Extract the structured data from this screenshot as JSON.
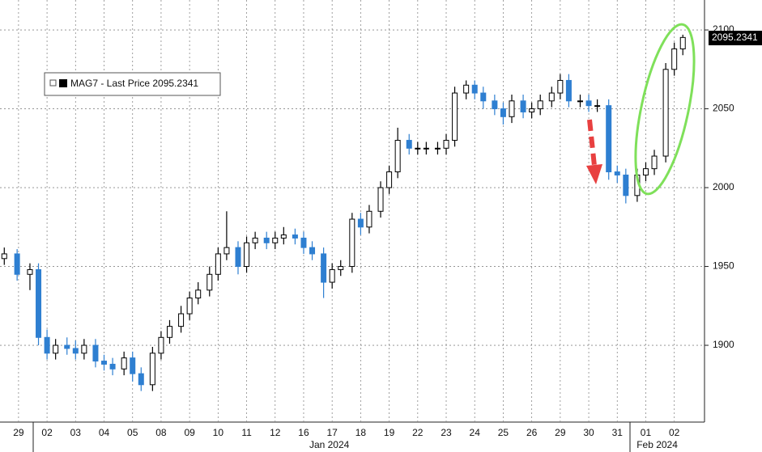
{
  "chart_data": {
    "type": "candlestick",
    "legend": "MAG7 - Last Price 2095.2341",
    "up_color": "#ffffff",
    "down_color": "#2e7fd1",
    "grid": true,
    "x": [
      -0.5,
      -0.05,
      0.4,
      0.7,
      1,
      1.3,
      1.7,
      2,
      2.3,
      2.7,
      3,
      3.3,
      3.7,
      4,
      4.3,
      4.7,
      5,
      5.3,
      5.7,
      6,
      6.3,
      6.7,
      7,
      7.3,
      7.7,
      8,
      8.3,
      8.7,
      9,
      9.3,
      9.7,
      10,
      10.3,
      10.7,
      11,
      11.3,
      11.7,
      12,
      12.3,
      12.7,
      13,
      13.3,
      13.7,
      14,
      14.3,
      14.7,
      15,
      15.3,
      15.7,
      16,
      16.3,
      16.7,
      17,
      17.3,
      17.7,
      18,
      18.3,
      18.7,
      19,
      19.3,
      19.7,
      20,
      20.3,
      20.7,
      21,
      21.3,
      21.7,
      22,
      22.3,
      22.7,
      23,
      23.3
    ],
    "open": [
      1955,
      1958,
      1945,
      1948,
      1905,
      1895,
      1900,
      1898,
      1895,
      1900,
      1890,
      1888,
      1885,
      1892,
      1882,
      1875,
      1895,
      1905,
      1912,
      1920,
      1930,
      1935,
      1945,
      1958,
      1962,
      1950,
      1965,
      1968,
      1965,
      1968,
      1970,
      1968,
      1962,
      1958,
      1940,
      1948,
      1950,
      1980,
      1975,
      1985,
      2000,
      2010,
      2030,
      2025,
      2025,
      2025,
      2025,
      2030,
      2060,
      2065,
      2060,
      2055,
      2050,
      2045,
      2055,
      2048,
      2050,
      2055,
      2060,
      2068,
      2055,
      2055,
      2052,
      2052,
      2010,
      2008,
      1995,
      2008,
      2012,
      2020,
      2075,
      2088
    ],
    "high": [
      1962,
      1961,
      1952,
      1952,
      1910,
      1904,
      1905,
      1903,
      1904,
      1904,
      1894,
      1892,
      1896,
      1896,
      1886,
      1899,
      1909,
      1916,
      1925,
      1934,
      1940,
      1950,
      1962,
      1985,
      1966,
      1969,
      1972,
      1972,
      1972,
      1975,
      1974,
      1972,
      1966,
      1962,
      1952,
      1954,
      1984,
      1984,
      1989,
      2004,
      2014,
      2038,
      2034,
      2029,
      2029,
      2029,
      2034,
      2064,
      2068,
      2068,
      2064,
      2059,
      2054,
      2059,
      2059,
      2054,
      2059,
      2064,
      2072,
      2072,
      2059,
      2059,
      2056,
      2056,
      2014,
      2012,
      2012,
      2016,
      2024,
      2079,
      2092,
      2097
    ],
    "low": [
      1951,
      1941,
      1935,
      1900,
      1891,
      1891,
      1894,
      1891,
      1891,
      1886,
      1884,
      1881,
      1881,
      1877,
      1871,
      1871,
      1891,
      1901,
      1908,
      1916,
      1926,
      1931,
      1941,
      1954,
      1945,
      1946,
      1961,
      1961,
      1961,
      1964,
      1964,
      1958,
      1954,
      1930,
      1936,
      1944,
      1946,
      1970,
      1971,
      1981,
      1996,
      2006,
      2021,
      2021,
      2021,
      2021,
      2021,
      2026,
      2056,
      2056,
      2050,
      2046,
      2040,
      2041,
      2044,
      2044,
      2046,
      2051,
      2056,
      2051,
      2051,
      2048,
      2048,
      2005,
      2003,
      1990,
      1991,
      2004,
      2008,
      2016,
      2071,
      2084
    ],
    "close": [
      1958,
      1945,
      1948,
      1905,
      1895,
      1900,
      1898,
      1895,
      1900,
      1890,
      1888,
      1885,
      1892,
      1882,
      1875,
      1895,
      1905,
      1912,
      1920,
      1930,
      1935,
      1945,
      1958,
      1962,
      1950,
      1965,
      1968,
      1965,
      1968,
      1970,
      1968,
      1962,
      1958,
      1940,
      1948,
      1950,
      1980,
      1975,
      1985,
      2000,
      2010,
      2030,
      2025,
      2025,
      2025,
      2025,
      2030,
      2060,
      2065,
      2060,
      2055,
      2050,
      2045,
      2055,
      2048,
      2050,
      2055,
      2060,
      2068,
      2055,
      2055,
      2052,
      2052,
      2010,
      2008,
      1995,
      2008,
      2012,
      2020,
      2075,
      2088,
      2095.2341
    ],
    "xlim": [
      -0.65,
      24.06
    ],
    "xticks": [
      {
        "value": 0,
        "label": "29"
      },
      {
        "value": 1,
        "label": "02"
      },
      {
        "value": 2,
        "label": "03"
      },
      {
        "value": 3,
        "label": "04"
      },
      {
        "value": 4,
        "label": "05"
      },
      {
        "value": 5,
        "label": "08"
      },
      {
        "value": 6,
        "label": "09"
      },
      {
        "value": 7,
        "label": "10"
      },
      {
        "value": 8,
        "label": "11"
      },
      {
        "value": 9,
        "label": "12"
      },
      {
        "value": 10,
        "label": "16"
      },
      {
        "value": 11,
        "label": "17"
      },
      {
        "value": 12,
        "label": "18"
      },
      {
        "value": 13,
        "label": "19"
      },
      {
        "value": 14,
        "label": "22"
      },
      {
        "value": 15,
        "label": "23"
      },
      {
        "value": 16,
        "label": "24"
      },
      {
        "value": 17,
        "label": "25"
      },
      {
        "value": 18,
        "label": "26"
      },
      {
        "value": 19,
        "label": "29"
      },
      {
        "value": 20,
        "label": "30"
      },
      {
        "value": 21,
        "label": "31"
      },
      {
        "value": 22,
        "label": "01"
      },
      {
        "value": 23,
        "label": "02"
      }
    ],
    "month_labels": [
      {
        "value": 10.9,
        "label": "Jan 2024"
      },
      {
        "value": 22.4,
        "label": "Feb 2024"
      }
    ],
    "ylim": [
      1851.3,
      2119
    ],
    "yticks": [
      1900,
      1950,
      2000,
      2050,
      2100
    ]
  }
}
